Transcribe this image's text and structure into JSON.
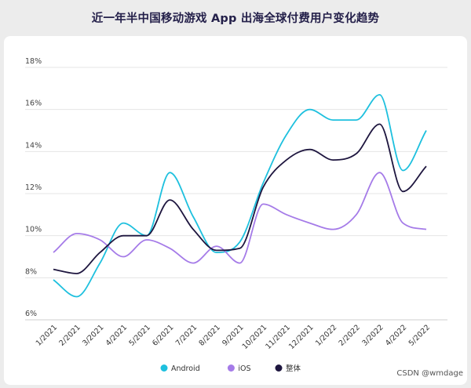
{
  "title": "近一年半中国移动游戏 App 出海全球付费用户变化趋势",
  "watermark": "CSDN @wmdage",
  "chart_data": {
    "type": "line",
    "title": "近一年半中国移动游戏 App 出海全球付费用户变化趋势",
    "categories": [
      "1/2021",
      "2/2021",
      "3/2021",
      "4/2021",
      "5/2021",
      "6/2021",
      "7/2021",
      "8/2021",
      "9/2021",
      "10/2021",
      "11/2021",
      "12/2021",
      "1/2022",
      "2/2022",
      "3/2022",
      "4/2022",
      "5/2022"
    ],
    "series": [
      {
        "name": "Android",
        "color": "#1ec0de",
        "values": [
          7.9,
          7.1,
          8.7,
          10.6,
          10.0,
          13.0,
          10.9,
          9.2,
          9.7,
          12.5,
          14.8,
          16.0,
          15.5,
          15.5,
          16.7,
          13.1,
          15.0
        ]
      },
      {
        "name": "iOS",
        "color": "#a57be8",
        "values": [
          9.2,
          10.1,
          9.8,
          9.0,
          9.8,
          9.4,
          8.7,
          9.5,
          8.7,
          11.5,
          11.0,
          10.6,
          10.3,
          11.0,
          13.0,
          10.6,
          10.3
        ]
      },
      {
        "name": "整体",
        "color": "#1e163f",
        "values": [
          8.4,
          8.2,
          9.2,
          10.0,
          10.0,
          11.7,
          10.3,
          9.3,
          9.4,
          12.3,
          13.6,
          14.1,
          13.6,
          13.9,
          15.3,
          12.1,
          13.3
        ]
      }
    ],
    "y_ticks": [
      6,
      8,
      10,
      12,
      14,
      16,
      18
    ],
    "y_tick_labels": [
      "6%",
      "8%",
      "10%",
      "12%",
      "14%",
      "16%",
      "18%"
    ],
    "ylim": [
      6,
      18
    ],
    "legend_position": "bottom",
    "grid": true
  }
}
